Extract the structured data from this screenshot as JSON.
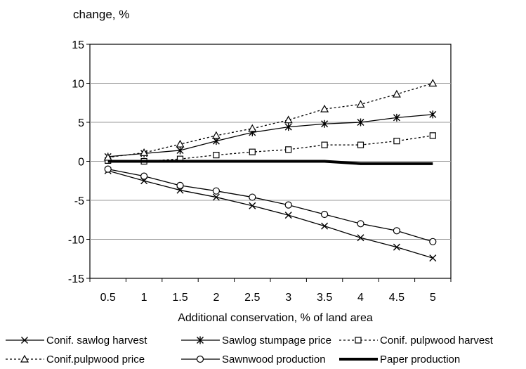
{
  "chart_data": {
    "type": "line",
    "title": "",
    "ylabel": "change, %",
    "xlabel": "Additional conservation, % of land area",
    "ylim": [
      -15,
      15
    ],
    "yticks": [
      15,
      10,
      5,
      0,
      -5,
      -10,
      -15
    ],
    "x": [
      0.5,
      1,
      1.5,
      2,
      2.5,
      3,
      3.5,
      4,
      4.5,
      5
    ],
    "xtick_labels": [
      "0.5",
      "1",
      "1.5",
      "2",
      "2.5",
      "3",
      "3.5",
      "4",
      "4.5",
      "5"
    ],
    "grid": "horizontal",
    "legend_position": "bottom",
    "series": [
      {
        "name": "Conif. sawlog harvest",
        "marker": "x",
        "style": "solid",
        "values": [
          -1.2,
          -2.5,
          -3.7,
          -4.6,
          -5.7,
          -6.9,
          -8.3,
          -9.8,
          -11.0,
          -12.4
        ]
      },
      {
        "name": "Sawlog stumpage price",
        "marker": "asterisk",
        "style": "solid",
        "values": [
          0.6,
          1.0,
          1.4,
          2.6,
          3.7,
          4.4,
          4.8,
          5.0,
          5.6,
          6.0
        ]
      },
      {
        "name": "Conif. pulpwood harvest",
        "marker": "square",
        "style": "dotted",
        "values": [
          0.1,
          0.0,
          0.3,
          0.8,
          1.2,
          1.5,
          2.1,
          2.1,
          2.6,
          3.3
        ]
      },
      {
        "name": "Conif.pulpwood price",
        "marker": "triangle",
        "style": "dotted",
        "values": [
          0.5,
          1.1,
          2.2,
          3.3,
          4.2,
          5.3,
          6.7,
          7.3,
          8.6,
          10.0
        ]
      },
      {
        "name": "Sawnwood production",
        "marker": "circle",
        "style": "solid",
        "values": [
          -1.0,
          -1.9,
          -3.1,
          -3.8,
          -4.6,
          -5.6,
          -6.8,
          -8.0,
          -8.9,
          -10.3
        ]
      },
      {
        "name": "Paper production",
        "marker": "none",
        "style": "thick",
        "values": [
          0.0,
          0.0,
          0.0,
          0.0,
          0.0,
          0.0,
          0.0,
          -0.3,
          -0.3,
          -0.3
        ]
      }
    ]
  }
}
